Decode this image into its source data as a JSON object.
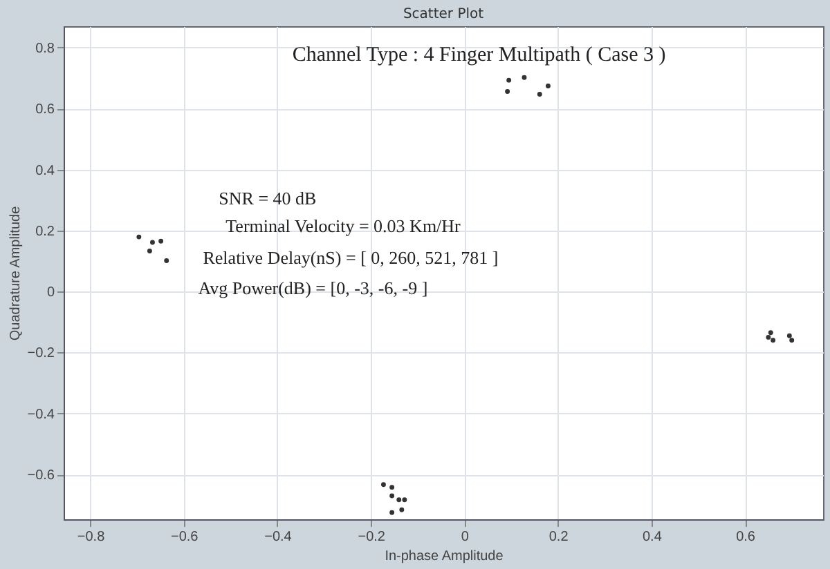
{
  "chart_data": {
    "type": "scatter",
    "title": "Scatter Plot",
    "xlabel": "In-phase Amplitude",
    "ylabel": "Quadrature Amplitude",
    "x": [
      0.095,
      0.128,
      0.092,
      0.161,
      0.179,
      -0.696,
      -0.667,
      -0.673,
      -0.637,
      -0.649,
      0.655,
      0.66,
      0.695,
      0.7,
      0.65,
      -0.173,
      -0.155,
      -0.155,
      -0.14,
      -0.128,
      -0.134,
      -0.155
    ],
    "values": [
      0.693,
      0.702,
      0.656,
      0.647,
      0.674,
      0.179,
      0.161,
      0.133,
      0.101,
      0.165,
      -0.135,
      -0.16,
      -0.145,
      -0.16,
      -0.15,
      -0.633,
      -0.642,
      -0.67,
      -0.683,
      -0.683,
      -0.716,
      -0.725
    ],
    "color": "#333333",
    "marker": "circle",
    "xlim": [
      -0.857,
      0.767
    ],
    "ylim": [
      -0.747,
      0.87
    ],
    "xticks": [
      -0.8,
      -0.6,
      -0.4,
      -0.2,
      0,
      0.2,
      0.4,
      0.6
    ],
    "yticks": [
      -0.6,
      -0.4,
      -0.2,
      0,
      0.2,
      0.4,
      0.6,
      0.8
    ],
    "grid": true,
    "annotations": [
      "Channel Type : 4 Finger Multipath ( Case 3 )",
      "SNR = 40 dB",
      "Terminal Velocity = 0.03 Km/Hr",
      "Relative Delay(nS) = [ 0, 260, 521, 781 ]",
      "Avg Power(dB) = [0, -3, -6, -9 ]"
    ]
  }
}
